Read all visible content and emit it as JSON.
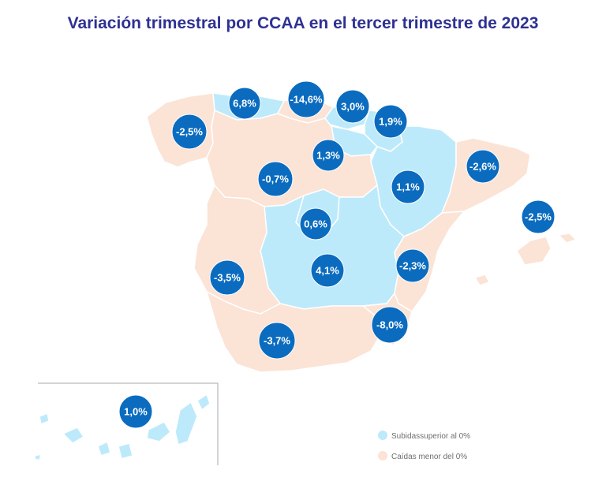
{
  "title": "Variación trimestral por CCAA en el tercer trimestre de 2023",
  "colors": {
    "increase": "#bdeafb",
    "decrease": "#fbe3d6",
    "badge": "#0b6cbf",
    "border": "#ffffff",
    "title": "#2e3192"
  },
  "regions": [
    {
      "name": "Galicia",
      "value": "-2,5%",
      "category": "decrease"
    },
    {
      "name": "Asturias",
      "value": "6,8%",
      "category": "increase"
    },
    {
      "name": "Cantabria",
      "value": "-14,6%",
      "category": "decrease"
    },
    {
      "name": "País Vasco",
      "value": "3,0%",
      "category": "increase"
    },
    {
      "name": "Navarra",
      "value": "1,9%",
      "category": "increase"
    },
    {
      "name": "La Rioja",
      "value": "1,3%",
      "category": "increase"
    },
    {
      "name": "Aragón",
      "value": "1,1%",
      "category": "increase"
    },
    {
      "name": "Cataluña",
      "value": "-2,6%",
      "category": "decrease"
    },
    {
      "name": "Castilla y León",
      "value": "-0,7%",
      "category": "decrease"
    },
    {
      "name": "Madrid",
      "value": "0,6%",
      "category": "increase"
    },
    {
      "name": "Castilla-La Mancha",
      "value": "4,1%",
      "category": "increase"
    },
    {
      "name": "Comunidad Valenciana",
      "value": "-2,3%",
      "category": "decrease"
    },
    {
      "name": "Islas Baleares",
      "value": "-2,5%",
      "category": "decrease"
    },
    {
      "name": "Extremadura",
      "value": "-3,5%",
      "category": "decrease"
    },
    {
      "name": "Andalucía",
      "value": "-3,7%",
      "category": "decrease"
    },
    {
      "name": "Murcia",
      "value": "-8,0%",
      "category": "decrease"
    },
    {
      "name": "Canarias",
      "value": "1,0%",
      "category": "increase"
    }
  ],
  "legend": {
    "increase_label": "Subidassuperior al 0%",
    "decrease_label": "Caídas menor del 0%"
  }
}
